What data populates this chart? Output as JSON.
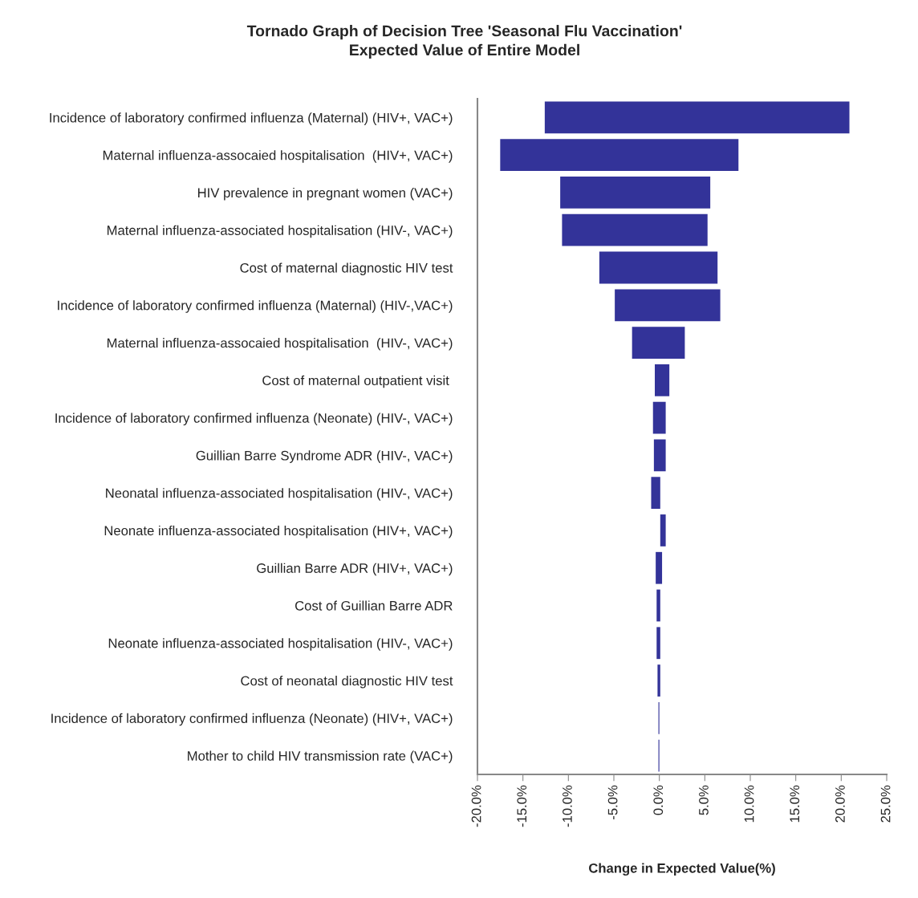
{
  "chart_data": {
    "type": "bar",
    "orientation": "horizontal",
    "title": "Tornado Graph of Decision Tree 'Seasonal Flu Vaccination'\nExpected Value of Entire Model",
    "xlabel": "Change in Expected Value(%)",
    "categories": [
      "Incidence of laboratory confirmed influenza (Maternal) (HIV+, VAC+)",
      "Maternal influenza-assocaied hospitalisation  (HIV+, VAC+)",
      "HIV prevalence in pregnant women (VAC+)",
      "Maternal influenza-associated hospitalisation (HIV-, VAC+)",
      "Cost of maternal diagnostic HIV test",
      "Incidence of laboratory confirmed influenza (Maternal) (HIV-,VAC+)",
      "Maternal influenza-assocaied hospitalisation  (HIV-, VAC+)",
      "Cost of maternal outpatient visit ",
      "Incidence of laboratory confirmed influenza (Neonate) (HIV-, VAC+)",
      "Guillian Barre Syndrome ADR (HIV-, VAC+)",
      "Neonatal influenza-associated hospitalisation (HIV-, VAC+)",
      "Neonate influenza-associated hospitalisation (HIV+, VAC+)",
      "Guillian Barre ADR (HIV+, VAC+)",
      "Cost of Guillian Barre ADR",
      "Neonate influenza-associated hospitalisation (HIV-, VAC+)",
      "Cost of neonatal diagnostic HIV test",
      "Incidence of laboratory confirmed influenza (Neonate) (HIV+, VAC+)",
      "Mother to child HIV transmission rate (VAC+)"
    ],
    "base": [
      -12.6,
      -17.5,
      -10.9,
      -10.7,
      -6.6,
      -4.9,
      -3.0,
      -0.5,
      -0.7,
      -0.6,
      -0.9,
      0.1,
      -0.4,
      -0.3,
      -0.3,
      -0.2,
      -0.1,
      -0.1
    ],
    "values": [
      33.5,
      26.2,
      16.5,
      16.0,
      13.0,
      11.6,
      5.8,
      1.6,
      1.4,
      1.3,
      1.0,
      0.6,
      0.7,
      0.4,
      0.4,
      0.3,
      0.1,
      0.1
    ],
    "color": "#333399",
    "xlim": [
      -20,
      25
    ],
    "xticks": [
      {
        "value": -20,
        "label": "-20.0%"
      },
      {
        "value": -15,
        "label": "-15.0%"
      },
      {
        "value": -10,
        "label": "-10.0%"
      },
      {
        "value": -5,
        "label": "-5.0%"
      },
      {
        "value": 0,
        "label": "0.0%"
      },
      {
        "value": 5,
        "label": "5.0%"
      },
      {
        "value": 10,
        "label": "10.0%"
      },
      {
        "value": 15,
        "label": "15.0%"
      },
      {
        "value": 20,
        "label": "20.0%"
      },
      {
        "value": 25,
        "label": "25.0%"
      }
    ],
    "grid": false,
    "legend": false
  }
}
